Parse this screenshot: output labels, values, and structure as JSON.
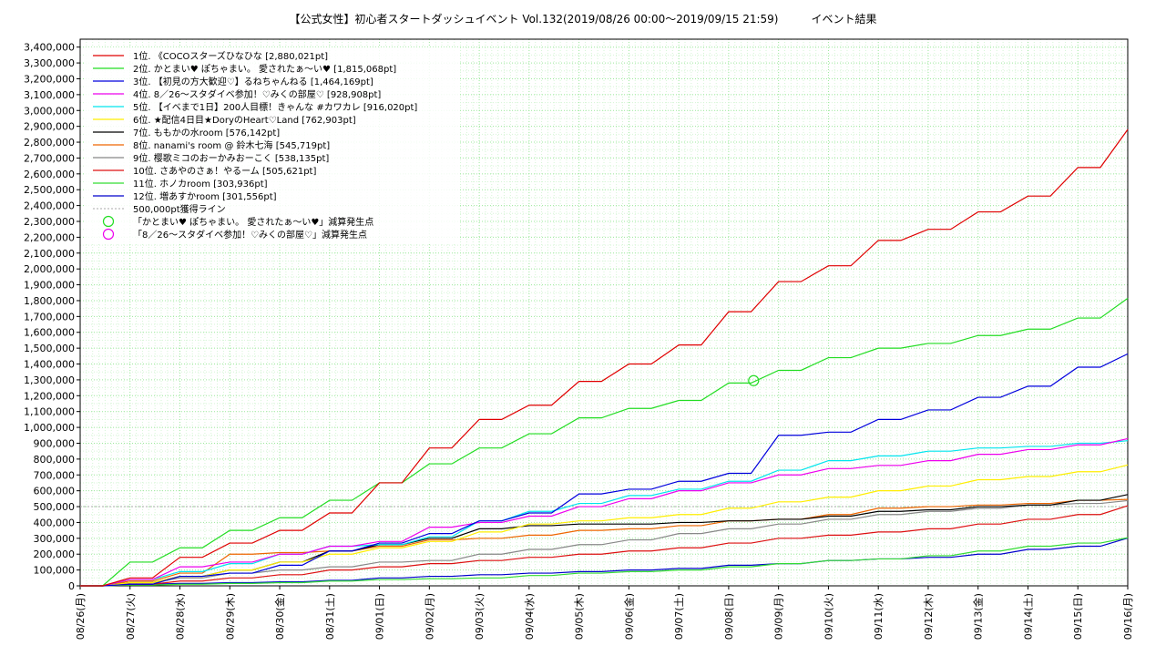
{
  "chart_data": {
    "type": "line",
    "title": "【公式女性】初心者スタートダッシュイベント Vol.132(2019/08/26 00:00～2019/09/15 21:59)　　　イベント結果",
    "xlabel": "",
    "ylabel": "",
    "ylim": [
      0,
      3450000
    ],
    "y_ticks": [
      "0",
      "100,000",
      "200,000",
      "300,000",
      "400,000",
      "500,000",
      "600,000",
      "700,000",
      "800,000",
      "900,000",
      "1,000,000",
      "1,100,000",
      "1,200,000",
      "1,300,000",
      "1,400,000",
      "1,500,000",
      "1,600,000",
      "1,700,000",
      "1,800,000",
      "1,900,000",
      "2,000,000",
      "2,100,000",
      "2,200,000",
      "2,300,000",
      "2,400,000",
      "2,500,000",
      "2,600,000",
      "2,700,000",
      "2,800,000",
      "2,900,000",
      "3,000,000",
      "3,100,000",
      "3,200,000",
      "3,300,000",
      "3,400,000"
    ],
    "x_ticks": [
      "08/26(月)",
      "08/27(火)",
      "08/28(水)",
      "08/29(木)",
      "08/30(金)",
      "08/31(土)",
      "09/01(日)",
      "09/02(月)",
      "09/03(火)",
      "09/04(水)",
      "09/05(木)",
      "09/06(金)",
      "09/07(土)",
      "09/08(日)",
      "09/09(月)",
      "09/10(火)",
      "09/11(水)",
      "09/12(木)",
      "09/13(金)",
      "09/14(土)",
      "09/15(日)",
      "09/16(月)"
    ],
    "x_days": [
      0,
      1,
      2,
      3,
      4,
      5,
      6,
      7,
      8,
      9,
      10,
      11,
      12,
      13,
      14,
      15,
      16,
      17,
      18,
      19,
      20,
      21
    ],
    "grid": true,
    "legend_position": "top-left",
    "series": [
      {
        "name": "1位. 《COCOスターズひなひな [2,880,021pt]",
        "color": "#e00000",
        "x": [
          0,
          1,
          2,
          3,
          4,
          5,
          6,
          7,
          8,
          9,
          10,
          11,
          12,
          13,
          14,
          15,
          16,
          17,
          18,
          19,
          20,
          21
        ],
        "values": [
          0,
          50000,
          180000,
          270000,
          350000,
          460000,
          650000,
          870000,
          1050000,
          1140000,
          1290000,
          1400000,
          1520000,
          1730000,
          1920000,
          2020000,
          2180000,
          2250000,
          2360000,
          2460000,
          2640000,
          2880021
        ]
      },
      {
        "name": "2位. かとまい♥ ぽちゃまい。 愛されたぁ〜い♥ [1,815,068pt]",
        "color": "#22dd22",
        "x": [
          0,
          1,
          2,
          3,
          4,
          5,
          6,
          7,
          8,
          9,
          10,
          11,
          12,
          13,
          14,
          15,
          16,
          17,
          18,
          19,
          20,
          21
        ],
        "values": [
          0,
          150000,
          240000,
          350000,
          430000,
          540000,
          650000,
          770000,
          870000,
          960000,
          1060000,
          1120000,
          1170000,
          1280000,
          1360000,
          1440000,
          1500000,
          1530000,
          1580000,
          1620000,
          1690000,
          1815068
        ]
      },
      {
        "name": "3位. 【初見の方大歓迎♡】るねちゃんねる [1,464,169pt]",
        "color": "#0000dd",
        "x": [
          0,
          1,
          2,
          3,
          4,
          5,
          6,
          7,
          8,
          9,
          10,
          11,
          12,
          13,
          14,
          15,
          16,
          17,
          18,
          19,
          20,
          21
        ],
        "values": [
          0,
          10000,
          60000,
          80000,
          130000,
          220000,
          270000,
          330000,
          410000,
          460000,
          580000,
          610000,
          660000,
          710000,
          950000,
          970000,
          1050000,
          1110000,
          1190000,
          1260000,
          1380000,
          1464169
        ]
      },
      {
        "name": "4位. 8／26〜スタダイベ参加！♡みくの部屋♡ [928,908pt]",
        "color": "#ee00ee",
        "x": [
          0,
          1,
          2,
          3,
          4,
          5,
          6,
          7,
          8,
          9,
          10,
          11,
          12,
          13,
          14,
          15,
          16,
          17,
          18,
          19,
          20,
          21
        ],
        "values": [
          0,
          40000,
          120000,
          150000,
          200000,
          250000,
          280000,
          370000,
          400000,
          440000,
          500000,
          550000,
          600000,
          650000,
          700000,
          740000,
          760000,
          790000,
          830000,
          860000,
          890000,
          928908
        ]
      },
      {
        "name": "5位. 【イベまで1日】200人目標！きゃんな #カワカレ [916,020pt]",
        "color": "#00e5ee",
        "x": [
          0,
          1,
          2,
          3,
          4,
          5,
          6,
          7,
          8,
          9,
          10,
          11,
          12,
          13,
          14,
          15,
          16,
          17,
          18,
          19,
          20,
          21
        ],
        "values": [
          0,
          40000,
          90000,
          140000,
          200000,
          250000,
          260000,
          310000,
          410000,
          470000,
          520000,
          570000,
          610000,
          660000,
          730000,
          790000,
          820000,
          850000,
          870000,
          880000,
          900000,
          916020
        ]
      },
      {
        "name": "6位. ★配信4日目★DoryのHeart♡Land [762,903pt]",
        "color": "#ffee00",
        "x": [
          0,
          1,
          2,
          3,
          4,
          5,
          6,
          7,
          8,
          9,
          10,
          11,
          12,
          13,
          14,
          15,
          16,
          17,
          18,
          19,
          20,
          21
        ],
        "values": [
          0,
          20000,
          60000,
          100000,
          150000,
          200000,
          240000,
          280000,
          340000,
          390000,
          410000,
          430000,
          450000,
          490000,
          530000,
          560000,
          600000,
          630000,
          670000,
          690000,
          720000,
          762903
        ]
      },
      {
        "name": "7位. ももかの水room [576,142pt]",
        "color": "#000000",
        "x": [
          0,
          1,
          2,
          3,
          4,
          5,
          6,
          7,
          8,
          9,
          10,
          11,
          12,
          13,
          14,
          15,
          16,
          17,
          18,
          19,
          20,
          21
        ],
        "values": [
          0,
          20000,
          60000,
          100000,
          150000,
          220000,
          260000,
          300000,
          360000,
          380000,
          390000,
          390000,
          400000,
          410000,
          420000,
          440000,
          470000,
          480000,
          500000,
          510000,
          540000,
          576142
        ]
      },
      {
        "name": "8位. nanami's room @ 鈴木七海 [545,719pt]",
        "color": "#ee6600",
        "x": [
          0,
          1,
          2,
          3,
          4,
          5,
          6,
          7,
          8,
          9,
          10,
          11,
          12,
          13,
          14,
          15,
          16,
          17,
          18,
          19,
          20,
          21
        ],
        "values": [
          0,
          30000,
          80000,
          200000,
          210000,
          220000,
          250000,
          290000,
          300000,
          320000,
          350000,
          360000,
          380000,
          410000,
          420000,
          450000,
          490000,
          500000,
          510000,
          520000,
          540000,
          545719
        ]
      },
      {
        "name": "9位. 樱歌ミコのおーかみおーこく [538,135pt]",
        "color": "#888888",
        "x": [
          0,
          1,
          2,
          3,
          4,
          5,
          6,
          7,
          8,
          9,
          10,
          11,
          12,
          13,
          14,
          15,
          16,
          17,
          18,
          19,
          20,
          21
        ],
        "values": [
          0,
          20000,
          50000,
          80000,
          100000,
          120000,
          150000,
          160000,
          200000,
          230000,
          260000,
          290000,
          330000,
          360000,
          390000,
          420000,
          450000,
          470000,
          490000,
          510000,
          520000,
          538135
        ]
      },
      {
        "name": "10位. さあやのさぁ！やるーム [505,621pt]",
        "color": "#dd1111",
        "x": [
          0,
          1,
          2,
          3,
          4,
          5,
          6,
          7,
          8,
          9,
          10,
          11,
          12,
          13,
          14,
          15,
          16,
          17,
          18,
          19,
          20,
          21
        ],
        "values": [
          0,
          10000,
          30000,
          50000,
          70000,
          100000,
          120000,
          140000,
          160000,
          180000,
          200000,
          220000,
          240000,
          270000,
          300000,
          320000,
          340000,
          360000,
          390000,
          420000,
          450000,
          505621
        ]
      },
      {
        "name": "11位. ホノカroom [303,936pt]",
        "color": "#33dd33",
        "x": [
          0,
          1,
          2,
          3,
          4,
          5,
          6,
          7,
          8,
          9,
          10,
          11,
          12,
          13,
          14,
          15,
          16,
          17,
          18,
          19,
          20,
          21
        ],
        "values": [
          0,
          5000,
          10000,
          15000,
          20000,
          30000,
          40000,
          45000,
          50000,
          65000,
          80000,
          90000,
          100000,
          120000,
          140000,
          160000,
          170000,
          190000,
          220000,
          250000,
          270000,
          303936
        ]
      },
      {
        "name": "12位. 増あすかroom [301,556pt]",
        "color": "#0000cc",
        "x": [
          0,
          1,
          2,
          3,
          4,
          5,
          6,
          7,
          8,
          9,
          10,
          11,
          12,
          13,
          14,
          15,
          16,
          17,
          18,
          19,
          20,
          21
        ],
        "values": [
          0,
          10000,
          15000,
          20000,
          25000,
          35000,
          50000,
          60000,
          70000,
          80000,
          90000,
          100000,
          110000,
          130000,
          140000,
          160000,
          170000,
          180000,
          200000,
          230000,
          250000,
          301556
        ]
      }
    ],
    "threshold_line": {
      "name": "500,000pt獲得ライン",
      "value": 500000,
      "color": "#aaaaaa"
    },
    "markers": [
      {
        "name": "「かとまい♥ ぽちゃまい。 愛されたぁ〜い♥」減算発生点",
        "color": "#22dd22",
        "x": 13.5,
        "y": 1295000
      }
    ],
    "marker_legend": [
      {
        "name": "「かとまい♥ ぽちゃまい。 愛されたぁ〜い♥」減算発生点",
        "color": "#22dd22"
      },
      {
        "name": "「8／26〜スタダイベ参加！♡みくの部屋♡」減算発生点",
        "color": "#ee00ee"
      }
    ]
  }
}
